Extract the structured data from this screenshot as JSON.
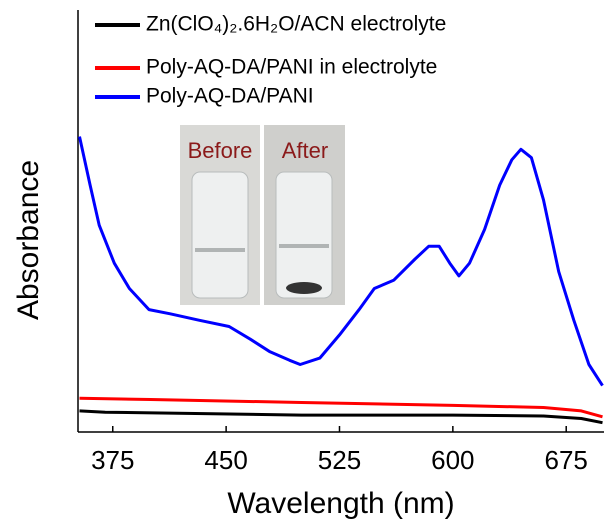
{
  "chart_data": {
    "type": "line",
    "xlabel": "Wavelength (nm)",
    "ylabel": "Absorbance",
    "xlim": [
      352,
      700
    ],
    "ylim": [
      0,
      1
    ],
    "xticks": [
      375,
      450,
      525,
      600,
      675
    ],
    "annotations": [
      "Before",
      "After"
    ],
    "series": [
      {
        "name": "Zn(ClO₄)₂.6H₂O/ACN electrolyte",
        "color": "#000000",
        "x": [
          353,
          370,
          500,
          600,
          660,
          685,
          699
        ],
        "values": [
          0.05,
          0.047,
          0.04,
          0.04,
          0.038,
          0.032,
          0.022
        ]
      },
      {
        "name": "Poly-AQ-DA/PANI in electrolyte",
        "color": "#ff0000",
        "x": [
          353,
          400,
          500,
          600,
          660,
          685,
          699
        ],
        "values": [
          0.08,
          0.077,
          0.07,
          0.063,
          0.058,
          0.05,
          0.036
        ]
      },
      {
        "name": "Poly-AQ-DA/PANI",
        "color": "#0000ff",
        "x": [
          353,
          360,
          366,
          376,
          386,
          399,
          413,
          432,
          452,
          466,
          479,
          492,
          499,
          512,
          525,
          538,
          548,
          561,
          575,
          584,
          591,
          598,
          604,
          611,
          621,
          631,
          639,
          645,
          652,
          660,
          670,
          680,
          690,
          699
        ],
        "values": [
          0.7,
          0.585,
          0.49,
          0.4,
          0.34,
          0.29,
          0.28,
          0.265,
          0.25,
          0.22,
          0.19,
          0.17,
          0.16,
          0.175,
          0.23,
          0.29,
          0.34,
          0.36,
          0.41,
          0.44,
          0.44,
          0.4,
          0.37,
          0.4,
          0.48,
          0.585,
          0.645,
          0.67,
          0.65,
          0.55,
          0.38,
          0.265,
          0.16,
          0.11
        ]
      }
    ]
  }
}
